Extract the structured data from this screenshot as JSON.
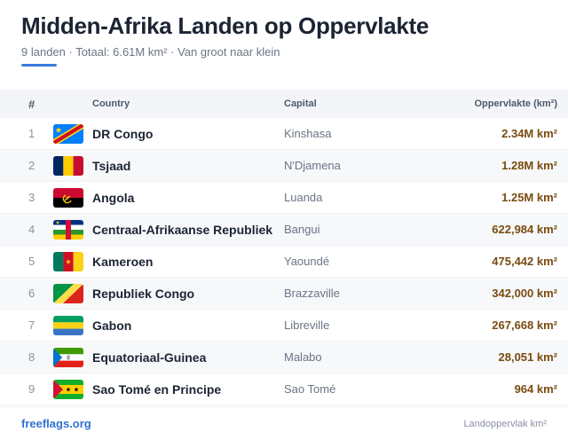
{
  "header": {
    "title": "Midden-Afrika Landen op Oppervlakte",
    "subtitle": "9 landen · Totaal: 6.61M km² · Van groot naar klein"
  },
  "table": {
    "columns": {
      "num": "#",
      "country": "Country",
      "capital": "Capital",
      "area": "Oppervlakte (km²)"
    },
    "rows": [
      {
        "num": "1",
        "country": "DR Congo",
        "capital": "Kinshasa",
        "area": "2.34M km²",
        "flag_icon": "drc-flag-icon"
      },
      {
        "num": "2",
        "country": "Tsjaad",
        "capital": "N'Djamena",
        "area": "1.28M km²",
        "flag_icon": "chad-flag-icon"
      },
      {
        "num": "3",
        "country": "Angola",
        "capital": "Luanda",
        "area": "1.25M km²",
        "flag_icon": "angola-flag-icon"
      },
      {
        "num": "4",
        "country": "Centraal-Afrikaanse Republiek",
        "capital": "Bangui",
        "area": "622,984 km²",
        "flag_icon": "car-flag-icon"
      },
      {
        "num": "5",
        "country": "Kameroen",
        "capital": "Yaoundé",
        "area": "475,442 km²",
        "flag_icon": "cameroon-flag-icon"
      },
      {
        "num": "6",
        "country": "Republiek Congo",
        "capital": "Brazzaville",
        "area": "342,000 km²",
        "flag_icon": "congo-flag-icon"
      },
      {
        "num": "7",
        "country": "Gabon",
        "capital": "Libreville",
        "area": "267,668 km²",
        "flag_icon": "gabon-flag-icon"
      },
      {
        "num": "8",
        "country": "Equatoriaal-Guinea",
        "capital": "Malabo",
        "area": "28,051 km²",
        "flag_icon": "eq-guinea-flag-icon"
      },
      {
        "num": "9",
        "country": "Sao Tomé en Principe",
        "capital": "Sao Tomé",
        "area": "964 km²",
        "flag_icon": "sao-tome-flag-icon"
      }
    ]
  },
  "footer": {
    "brand": "freeflags.org",
    "note": "Landoppervlak km²"
  },
  "colors": {
    "accent": "#3b7bdc",
    "area_text": "#7a4b12",
    "brand": "#2f72d3"
  }
}
